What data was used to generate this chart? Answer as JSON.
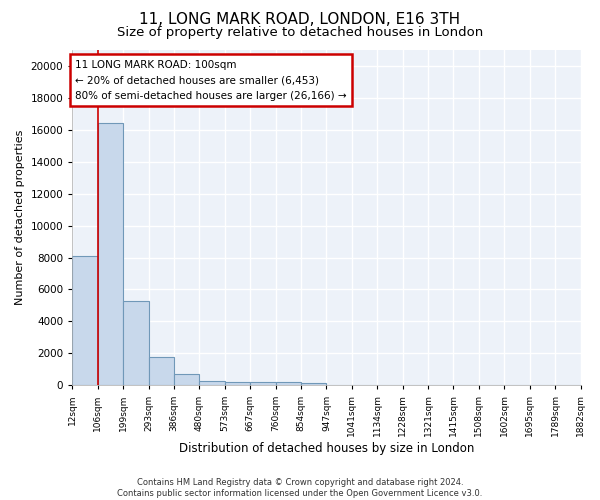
{
  "title": "11, LONG MARK ROAD, LONDON, E16 3TH",
  "subtitle": "Size of property relative to detached houses in London",
  "xlabel": "Distribution of detached houses by size in London",
  "ylabel": "Number of detached properties",
  "bin_labels": [
    "12sqm",
    "106sqm",
    "199sqm",
    "293sqm",
    "386sqm",
    "480sqm",
    "573sqm",
    "667sqm",
    "760sqm",
    "854sqm",
    "947sqm",
    "1041sqm",
    "1134sqm",
    "1228sqm",
    "1321sqm",
    "1415sqm",
    "1508sqm",
    "1602sqm",
    "1695sqm",
    "1789sqm",
    "1882sqm"
  ],
  "bar_heights": [
    8100,
    16400,
    5300,
    1750,
    700,
    300,
    230,
    200,
    190,
    160,
    0,
    0,
    0,
    0,
    0,
    0,
    0,
    0,
    0,
    0
  ],
  "bar_color": "#c8d8eb",
  "bar_edge_color": "#7098b8",
  "marker_label": "11 LONG MARK ROAD: 100sqm",
  "annotation_line1": "← 20% of detached houses are smaller (6,453)",
  "annotation_line2": "80% of semi-detached houses are larger (26,166) →",
  "annotation_box_color": "#ffffff",
  "annotation_box_edge_color": "#cc0000",
  "vline_color": "#cc0000",
  "ylim": [
    0,
    21000
  ],
  "yticks": [
    0,
    2000,
    4000,
    6000,
    8000,
    10000,
    12000,
    14000,
    16000,
    18000,
    20000
  ],
  "footnote": "Contains HM Land Registry data © Crown copyright and database right 2024.\nContains public sector information licensed under the Open Government Licence v3.0.",
  "bg_color": "#ffffff",
  "plot_bg_color": "#edf2f9",
  "grid_color": "#ffffff",
  "title_fontsize": 11,
  "subtitle_fontsize": 9.5
}
